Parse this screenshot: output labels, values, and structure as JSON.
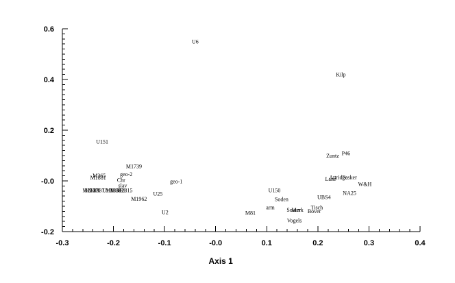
{
  "chart_data": {
    "type": "scatter",
    "title": "",
    "xlabel": "Axis 1",
    "ylabel": "",
    "xlim": [
      -0.3,
      0.4
    ],
    "ylim": [
      -0.2,
      0.6
    ],
    "x_ticks": [
      -0.3,
      -0.2,
      -0.1,
      0.0,
      0.1,
      0.2,
      0.3,
      0.4
    ],
    "x_tick_labels": [
      "-0.3",
      "-0.2",
      "-0.1",
      "-0.0",
      "0.1",
      "0.2",
      "0.3",
      "0.4"
    ],
    "y_ticks": [
      -0.2,
      0.0,
      0.2,
      0.4,
      0.6
    ],
    "y_tick_labels": [
      "-0.2",
      "-0.0",
      "0.2",
      "0.4",
      "0.6"
    ],
    "grid": false,
    "points": [
      {
        "label": "U6",
        "x": -0.04,
        "y": 0.55
      },
      {
        "label": "Kilp",
        "x": 0.245,
        "y": 0.42
      },
      {
        "label": "U151",
        "x": -0.222,
        "y": 0.155
      },
      {
        "label": "P46",
        "x": 0.255,
        "y": 0.11
      },
      {
        "label": "Zuntz",
        "x": 0.229,
        "y": 0.1
      },
      {
        "label": "M1739",
        "x": -0.16,
        "y": 0.058
      },
      {
        "label": "geo-2",
        "x": -0.175,
        "y": 0.027
      },
      {
        "label": "M365",
        "x": -0.228,
        "y": 0.022
      },
      {
        "label": "M1881",
        "x": -0.23,
        "y": 0.013
      },
      {
        "label": "Chr",
        "x": -0.185,
        "y": 0.004
      },
      {
        "label": "Attridge",
        "x": 0.24,
        "y": 0.015
      },
      {
        "label": "Lane",
        "x": 0.225,
        "y": 0.008
      },
      {
        "label": "Fasker",
        "x": 0.262,
        "y": 0.015
      },
      {
        "label": "W&H",
        "x": 0.292,
        "y": -0.012
      },
      {
        "label": "geo-1",
        "x": -0.077,
        "y": -0.002
      },
      {
        "label": "slav",
        "x": -0.182,
        "y": -0.018
      },
      {
        "label": "M2127",
        "x": -0.245,
        "y": -0.037
      },
      {
        "label": "M2400",
        "x": -0.241,
        "y": -0.037
      },
      {
        "label": "U1837",
        "x": -0.232,
        "y": -0.037
      },
      {
        "label": "U100",
        "x": -0.21,
        "y": -0.037
      },
      {
        "label": "M1835",
        "x": -0.2,
        "y": -0.037
      },
      {
        "label": "M1891",
        "x": -0.191,
        "y": -0.037
      },
      {
        "label": "M2815",
        "x": -0.178,
        "y": -0.037
      },
      {
        "label": "U150",
        "x": 0.115,
        "y": -0.036
      },
      {
        "label": "NA25",
        "x": 0.262,
        "y": -0.047
      },
      {
        "label": "U25",
        "x": -0.113,
        "y": -0.05
      },
      {
        "label": "M1962",
        "x": -0.15,
        "y": -0.07
      },
      {
        "label": "Soden",
        "x": 0.129,
        "y": -0.071
      },
      {
        "label": "UBS4",
        "x": 0.212,
        "y": -0.063
      },
      {
        "label": "arm",
        "x": 0.107,
        "y": -0.104
      },
      {
        "label": "Tisch",
        "x": 0.198,
        "y": -0.104
      },
      {
        "label": "Souter",
        "x": 0.153,
        "y": -0.114
      },
      {
        "label": "Merk",
        "x": 0.16,
        "y": -0.114
      },
      {
        "label": "Bover",
        "x": 0.193,
        "y": -0.119
      },
      {
        "label": "M81",
        "x": 0.068,
        "y": -0.125
      },
      {
        "label": "U2",
        "x": -0.099,
        "y": -0.123
      },
      {
        "label": "Vogels",
        "x": 0.154,
        "y": -0.155
      }
    ]
  }
}
